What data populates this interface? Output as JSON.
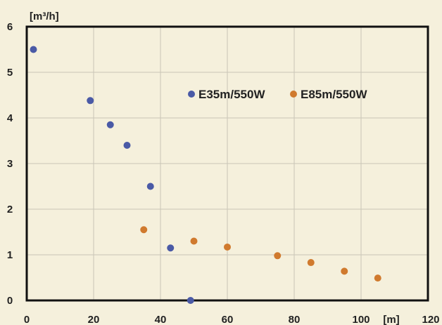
{
  "chart_data": {
    "type": "scatter",
    "title": "",
    "xlabel": "[m]",
    "ylabel": "[m³/h]",
    "xlim": [
      0,
      120
    ],
    "ylim": [
      0,
      6
    ],
    "x_ticks": [
      "0",
      "20",
      "40",
      "60",
      "80",
      "100",
      "120"
    ],
    "y_ticks": [
      "0",
      "1",
      "2",
      "3",
      "4",
      "5",
      "6"
    ],
    "grid": true,
    "legend_placement": "top-right",
    "series": [
      {
        "name": "E35m/550W",
        "color": "#4a5aa6",
        "points": [
          [
            2,
            5.5
          ],
          [
            19,
            4.38
          ],
          [
            25,
            3.85
          ],
          [
            30,
            3.4
          ],
          [
            37,
            2.5
          ],
          [
            43,
            1.15
          ],
          [
            49,
            0
          ]
        ]
      },
      {
        "name": "E85m/550W",
        "color": "#d07a2e",
        "points": [
          [
            35,
            1.55
          ],
          [
            50,
            1.3
          ],
          [
            60,
            1.17
          ],
          [
            75,
            0.98
          ],
          [
            85,
            0.83
          ],
          [
            95,
            0.64
          ],
          [
            105,
            0.49
          ]
        ]
      }
    ]
  }
}
